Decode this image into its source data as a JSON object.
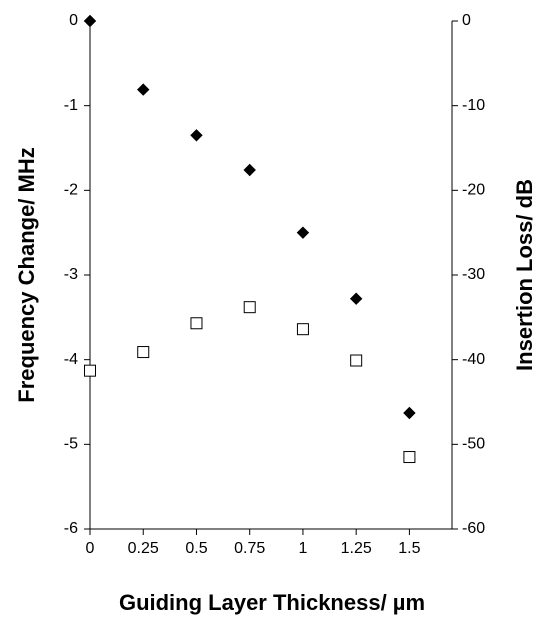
{
  "chart_data": {
    "type": "scatter",
    "x_label": "Guiding Layer Thickness/ µm",
    "y_label": "Frequency Change/ MHz",
    "y2_label": "Insertion Loss/ dB",
    "x": [
      0,
      0.25,
      0.5,
      0.75,
      1,
      1.25,
      1.5
    ],
    "xlim": [
      0,
      1.7
    ],
    "xticks": [
      0,
      0.25,
      0.5,
      0.75,
      1,
      1.25,
      1.5
    ],
    "ylim": [
      -6,
      0
    ],
    "yticks": [
      0,
      -1,
      -2,
      -3,
      -4,
      -5,
      -6
    ],
    "y2lim": [
      -60,
      0
    ],
    "y2ticks": [
      0,
      -10,
      -20,
      -30,
      -40,
      -50,
      -60
    ],
    "series": [
      {
        "color": "#000000",
        "fill": "#000000",
        "marker": "diamond",
        "values": [
          0,
          -0.81,
          -1.35,
          -1.76,
          -2.5,
          -3.28,
          -4.63
        ]
      },
      {
        "color": "#000000",
        "fill": "#ffffff",
        "marker": "square",
        "axis": "y2",
        "values": [
          -41.3,
          -39.1,
          -35.7,
          -33.8,
          -36.4,
          -40.1,
          -51.5
        ]
      }
    ]
  }
}
